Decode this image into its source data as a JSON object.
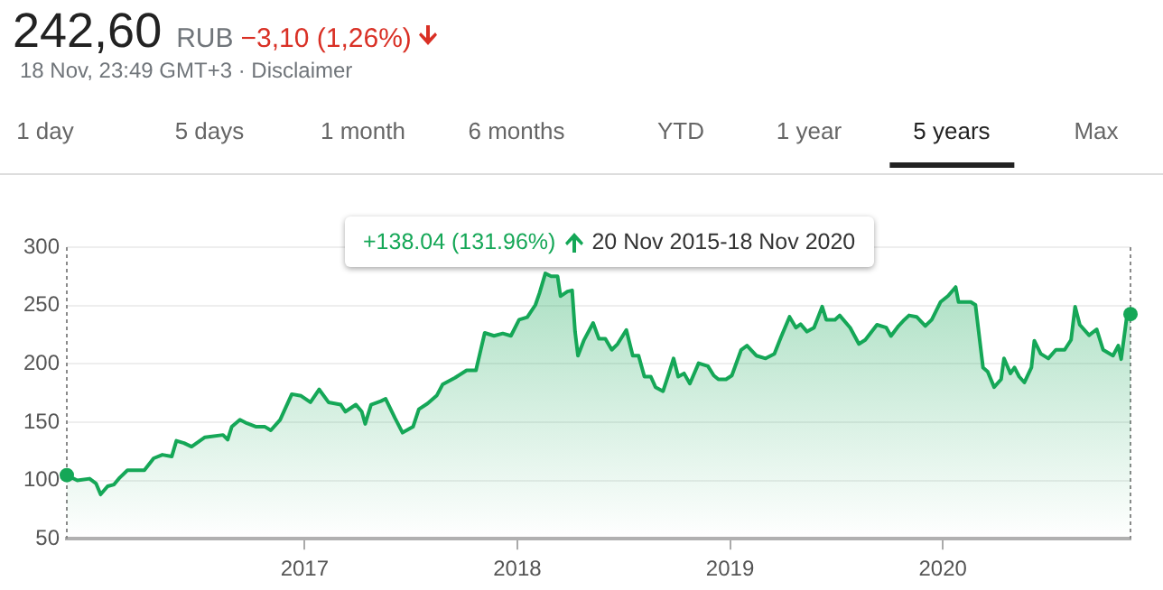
{
  "chart_data": {
    "type": "area",
    "title": "242,60",
    "annotations": [
      "RUB",
      "−3,10 (1,26%)",
      "18 Nov, 23:49 GMT+3 · Disclaimer",
      "1 day",
      "5 days",
      "1 month",
      "6 months",
      "YTD",
      "1 year",
      "5 years",
      "Max",
      "+138.04 (131.96%)",
      "20 Nov 2015-18 Nov 2020"
    ],
    "x": [
      "2015-11-20",
      "2015-12-08",
      "2015-12-29",
      "2016-01-09",
      "2016-01-17",
      "2016-01-29",
      "2016-02-09",
      "2016-02-19",
      "2016-03-03",
      "2016-04-01",
      "2016-04-17",
      "2016-05-02",
      "2016-05-18",
      "2016-05-26",
      "2016-06-08",
      "2016-06-21",
      "2016-07-14",
      "2016-08-14",
      "2016-08-22",
      "2016-08-29",
      "2016-09-12",
      "2016-09-24",
      "2016-10-10",
      "2016-10-25",
      "2016-11-04",
      "2016-11-20",
      "2016-12-10",
      "2016-12-26",
      "2017-01-11",
      "2017-01-26",
      "2017-02-11",
      "2017-03-04",
      "2017-03-12",
      "2017-03-30",
      "2017-04-09",
      "2017-04-15",
      "2017-04-25",
      "2017-05-12",
      "2017-05-20",
      "2017-06-05",
      "2017-06-18",
      "2017-07-06",
      "2017-07-16",
      "2017-07-31",
      "2017-08-16",
      "2017-08-26",
      "2017-09-16",
      "2017-10-06",
      "2017-10-22",
      "2017-11-06",
      "2017-11-22",
      "2017-12-07",
      "2017-12-21",
      "2018-01-04",
      "2018-01-18",
      "2018-02-01",
      "2018-02-08",
      "2018-02-18",
      "2018-02-28",
      "2018-03-11",
      "2018-03-16",
      "2018-03-28",
      "2018-04-05",
      "2018-04-10",
      "2018-04-15",
      "2018-04-25",
      "2018-05-11",
      "2018-05-21",
      "2018-06-01",
      "2018-06-12",
      "2018-06-22",
      "2018-07-07",
      "2018-07-18",
      "2018-07-28",
      "2018-08-07",
      "2018-08-18",
      "2018-08-26",
      "2018-09-08",
      "2018-09-18",
      "2018-09-26",
      "2018-10-04",
      "2018-10-14",
      "2018-10-24",
      "2018-11-08",
      "2018-11-24",
      "2018-12-04",
      "2018-12-12",
      "2018-12-25",
      "2019-01-04",
      "2019-01-20",
      "2019-01-30",
      "2019-02-15",
      "2019-03-03",
      "2019-03-18",
      "2019-03-29",
      "2019-04-13",
      "2019-04-24",
      "2019-05-02",
      "2019-05-13",
      "2019-05-25",
      "2019-06-08",
      "2019-06-15",
      "2019-06-30",
      "2019-07-08",
      "2019-07-26",
      "2019-08-10",
      "2019-08-21",
      "2019-09-10",
      "2019-09-26",
      "2019-10-04",
      "2019-10-17",
      "2019-10-27",
      "2019-11-04",
      "2019-11-17",
      "2019-12-02",
      "2019-12-13",
      "2019-12-28",
      "2020-01-10",
      "2020-01-23",
      "2020-01-28",
      "2020-02-18",
      "2020-02-26",
      "2020-03-10",
      "2020-03-18",
      "2020-03-29",
      "2020-04-10",
      "2020-04-15",
      "2020-04-26",
      "2020-05-03",
      "2020-05-11",
      "2020-05-20",
      "2020-06-01",
      "2020-06-06",
      "2020-06-17",
      "2020-06-30",
      "2020-07-13",
      "2020-07-28",
      "2020-08-08",
      "2020-08-15",
      "2020-08-23",
      "2020-09-08",
      "2020-09-21",
      "2020-10-02",
      "2020-10-19",
      "2020-10-28",
      "2020-11-02",
      "2020-11-12",
      "2020-11-18"
    ],
    "values": [
      104.56,
      100,
      101.5,
      97.5,
      88,
      95,
      96.5,
      102.5,
      108.7,
      108.7,
      119,
      122,
      120.5,
      134,
      132,
      129,
      137,
      139,
      135,
      146,
      152,
      149,
      146,
      146,
      143,
      152,
      174,
      172.5,
      167,
      178,
      167,
      165,
      159,
      165,
      159,
      148.5,
      165,
      168,
      170,
      153.5,
      141,
      146,
      161,
      166,
      173,
      182.5,
      188,
      194.4,
      194.4,
      226.5,
      224,
      226,
      224,
      237.8,
      240,
      250.5,
      260.7,
      277.5,
      275,
      275,
      258,
      262,
      263,
      227.6,
      207,
      220,
      235,
      221.4,
      221.4,
      212,
      217,
      229,
      207,
      207,
      189,
      189,
      180,
      176.5,
      191.8,
      204.6,
      189,
      191.8,
      183,
      200.5,
      198,
      190,
      186.7,
      186.7,
      190,
      212,
      215.6,
      207,
      204.6,
      208.6,
      222.4,
      240.3,
      231,
      234,
      227.6,
      231,
      249,
      237.8,
      237.8,
      241.5,
      231,
      217,
      220.5,
      233.5,
      231,
      223.8,
      232.5,
      237.8,
      241.5,
      240.3,
      232.5,
      237.8,
      253,
      258.2,
      265.8,
      253,
      253,
      250.5,
      196.8,
      193.3,
      180,
      186.7,
      204.6,
      191.8,
      196.8,
      189,
      184,
      196.8,
      219.8,
      208.6,
      204.6,
      212,
      212,
      220.5,
      249,
      233.5,
      224.5,
      229.6,
      212,
      207,
      215.6,
      204,
      241.5,
      242.6
    ],
    "color": "#15a757",
    "xlim": [
      "2015-11-20",
      "2020-11-18"
    ],
    "xticks": [
      {
        "value": "2017-01-01",
        "label": "2017"
      },
      {
        "value": "2018-01-01",
        "label": "2018"
      },
      {
        "value": "2019-01-01",
        "label": "2019"
      },
      {
        "value": "2020-01-01",
        "label": "2020"
      }
    ],
    "ylim": [
      50,
      300
    ],
    "yticks": [
      50,
      100,
      150,
      200,
      250,
      300
    ],
    "grid": "y",
    "ref_lines": [
      {
        "axis": "x",
        "value": "2015-11-20",
        "color": "#8a8a8a",
        "line_style": "dotted"
      },
      {
        "axis": "x",
        "value": "2020-11-18",
        "color": "#8a8a8a",
        "line_style": "dotted"
      }
    ]
  }
}
